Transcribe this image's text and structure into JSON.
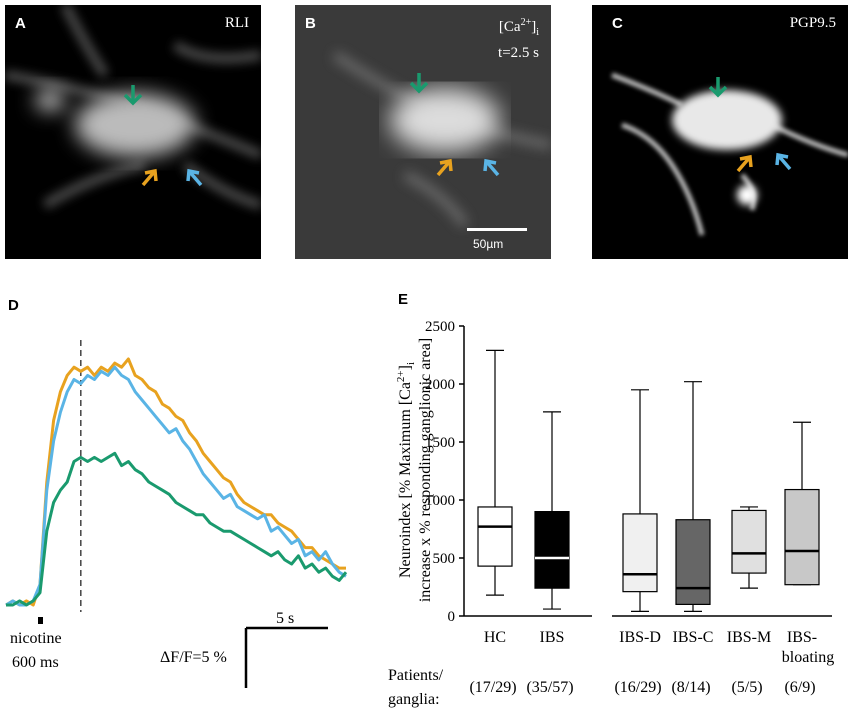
{
  "panels": {
    "A": {
      "letter": "A",
      "label": "RLI"
    },
    "B": {
      "letter": "B",
      "label_base": "[Ca",
      "label_sup": "2+",
      "label_end": "]",
      "label_sub": "i",
      "time": "t=2.5 s",
      "scalebar": "50µm"
    },
    "C": {
      "letter": "C",
      "label": "PGP9.5"
    },
    "D": {
      "letter": "D",
      "stim_label": "nicotine",
      "stim_duration": "600 ms",
      "scale_x": "5 s",
      "scale_y": "ΔF/F=5 %"
    },
    "E": {
      "letter": "E"
    }
  },
  "colors": {
    "green": "#1a9a6e",
    "orange": "#e8a21f",
    "blue": "#5ab4e5"
  },
  "chart_data": [
    {
      "type": "line",
      "title": "D",
      "xlabel": "",
      "ylabel": "",
      "x_unit": "frames",
      "series": [
        {
          "name": "orange",
          "color": "#e8a21f",
          "values": [
            0,
            1,
            0,
            1,
            0,
            5,
            30,
            45,
            52,
            56,
            58,
            57,
            58,
            56,
            58,
            57,
            59,
            58,
            60,
            56,
            55,
            53,
            52,
            49,
            48,
            46,
            45,
            42,
            40,
            37,
            35,
            33,
            31,
            30,
            27,
            25,
            24,
            23,
            22,
            22,
            20,
            19,
            18,
            16,
            14,
            14,
            12,
            11,
            10,
            9,
            9
          ]
        },
        {
          "name": "blue",
          "color": "#5ab4e5",
          "values": [
            0,
            1,
            0,
            0,
            1,
            5,
            28,
            40,
            47,
            52,
            55,
            54,
            56,
            55,
            57,
            56,
            58,
            56,
            55,
            52,
            50,
            48,
            46,
            44,
            42,
            43,
            40,
            38,
            35,
            32,
            30,
            28,
            26,
            27,
            24,
            23,
            22,
            21,
            22,
            18,
            19,
            17,
            15,
            16,
            12,
            13,
            11,
            13,
            10,
            8,
            7
          ]
        },
        {
          "name": "green",
          "color": "#1a9a6e",
          "values": [
            0,
            0,
            1,
            0,
            1,
            3,
            18,
            25,
            28,
            30,
            35,
            36,
            35,
            36,
            35,
            36,
            37,
            34,
            35,
            33,
            32,
            30,
            29,
            28,
            27,
            25,
            24,
            23,
            22,
            22,
            20,
            19,
            18,
            18,
            17,
            16,
            15,
            14,
            13,
            12,
            13,
            11,
            10,
            12,
            9,
            10,
            8,
            9,
            7,
            6,
            8
          ]
        }
      ],
      "stimulus_frame": 5,
      "dashed_line_frame": 11
    },
    {
      "type": "box",
      "title": "E",
      "ylabel_line1_base": "Neuroindex [% Maximum [Ca",
      "ylabel_line1_sup": "2+",
      "ylabel_line1_end": "]",
      "ylabel_line1_sub": "i",
      "ylabel_line2": "increase x % responding ganglionic  area]",
      "ylim": [
        0,
        2500
      ],
      "yticks": [
        0,
        500,
        1000,
        1500,
        2000,
        2500
      ],
      "patients_label_1": "Patients/",
      "patients_label_2": "ganglia:",
      "groups": [
        {
          "name": "HC",
          "name2": "",
          "min": 180,
          "q1": 430,
          "median": 770,
          "q3": 940,
          "max": 2290,
          "fill": "#ffffff",
          "median_color": "#000000",
          "n": "(17/29)"
        },
        {
          "name": "IBS",
          "name2": "",
          "min": 60,
          "q1": 240,
          "median": 500,
          "q3": 900,
          "max": 1760,
          "fill": "#000000",
          "median_color": "#ffffff",
          "n": "(35/57)"
        },
        {
          "name": "IBS-D",
          "name2": "",
          "min": 40,
          "q1": 210,
          "median": 360,
          "q3": 880,
          "max": 1950,
          "fill": "#f0f0f0",
          "median_color": "#000000",
          "n": "(16/29)"
        },
        {
          "name": "IBS-C",
          "name2": "",
          "min": 40,
          "q1": 100,
          "median": 240,
          "q3": 830,
          "max": 2020,
          "fill": "#666666",
          "median_color": "#000000",
          "n": "(8/14)"
        },
        {
          "name": "IBS-M",
          "name2": "",
          "min": 240,
          "q1": 370,
          "median": 540,
          "q3": 910,
          "max": 940,
          "fill": "#e0e0e0",
          "median_color": "#000000",
          "n": "(5/5)"
        },
        {
          "name": "IBS-",
          "name2": "bloating",
          "min": 270,
          "q1": 270,
          "median": 560,
          "q3": 1090,
          "max": 1670,
          "fill": "#c8c8c8",
          "median_color": "#000000",
          "n": "(6/9)"
        }
      ]
    }
  ]
}
